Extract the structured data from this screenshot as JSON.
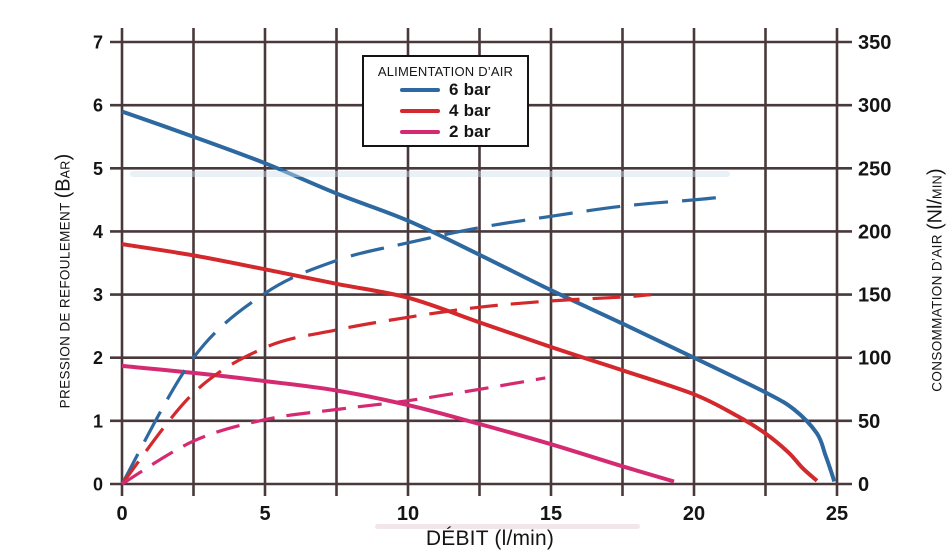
{
  "colors": {
    "grid": "#4a393b",
    "text": "#141414",
    "blue": "#2d69a0",
    "red": "#d3282c",
    "magenta": "#d42a72",
    "background": "#ffffff"
  },
  "legend": {
    "title": "ALIMENTATION D’AIR",
    "entries": [
      {
        "label": "6 bar",
        "color": "#2d69a0"
      },
      {
        "label": "4 bar",
        "color": "#d3282c"
      },
      {
        "label": "2 bar",
        "color": "#d42a72"
      }
    ]
  },
  "axes": {
    "left": {
      "title_main": "PRESSION DE REFOULEMENT ",
      "title_open": "(B",
      "title_small": "AR",
      "title_close": ")"
    },
    "right": {
      "title_main": "CONSOMMATION D’AIR ",
      "title_open": "(Nl/",
      "title_small": "MIN",
      "title_close": ")"
    },
    "x": {
      "title": "DÉBIT (l/min)"
    }
  },
  "chart_data": {
    "type": "line",
    "title": "",
    "xlabel": "DÉBIT (l/min)",
    "ylabel_left": "PRESSION DE REFOULEMENT (BAR)",
    "ylabel_right": "CONSOMMATION D’AIR (Nl/MIN)",
    "xlim": [
      0,
      25
    ],
    "ylim_left": [
      0,
      7
    ],
    "ylim_right": [
      0,
      350
    ],
    "x_tick_labels": [
      0,
      5,
      10,
      15,
      20,
      25
    ],
    "x_gridline_step": 2.5,
    "y_ticks_left": [
      0,
      1,
      2,
      3,
      4,
      5,
      6,
      7
    ],
    "y_ticks_right": [
      0,
      50,
      100,
      150,
      200,
      250,
      300,
      350
    ],
    "grid": true,
    "legend_title": "ALIMENTATION D’AIR",
    "legend_position": "top-center",
    "series": [
      {
        "id": "pression-6bar",
        "name": "6 bar – pression de refoulement",
        "axis": "left",
        "style": "solid",
        "color": "#2d69a0",
        "dash": null,
        "points": [
          [
            0,
            5.9
          ],
          [
            2.5,
            5.5
          ],
          [
            5,
            5.08
          ],
          [
            7.5,
            4.6
          ],
          [
            10,
            4.17
          ],
          [
            12.5,
            3.63
          ],
          [
            15,
            3.07
          ],
          [
            17.5,
            2.54
          ],
          [
            20,
            2.0
          ],
          [
            22.5,
            1.45
          ],
          [
            23.5,
            1.18
          ],
          [
            24.3,
            0.8
          ],
          [
            24.6,
            0.45
          ],
          [
            24.85,
            0.12
          ],
          [
            24.9,
            0.04
          ]
        ]
      },
      {
        "id": "pression-4bar",
        "name": "4 bar – pression de refoulement",
        "axis": "left",
        "style": "solid",
        "color": "#d3282c",
        "dash": null,
        "points": [
          [
            0,
            3.8
          ],
          [
            2.5,
            3.62
          ],
          [
            5,
            3.4
          ],
          [
            7.5,
            3.17
          ],
          [
            10,
            2.95
          ],
          [
            12.5,
            2.56
          ],
          [
            15,
            2.17
          ],
          [
            17.5,
            1.8
          ],
          [
            20,
            1.42
          ],
          [
            21.5,
            1.08
          ],
          [
            22.5,
            0.8
          ],
          [
            23.3,
            0.5
          ],
          [
            23.8,
            0.25
          ],
          [
            24.3,
            0.05
          ]
        ]
      },
      {
        "id": "pression-2bar",
        "name": "2 bar – pression de refoulement",
        "axis": "left",
        "style": "solid",
        "color": "#d42a72",
        "dash": null,
        "points": [
          [
            0,
            1.87
          ],
          [
            2.5,
            1.76
          ],
          [
            5,
            1.63
          ],
          [
            7.5,
            1.48
          ],
          [
            10,
            1.25
          ],
          [
            12.5,
            0.95
          ],
          [
            15,
            0.63
          ],
          [
            17.5,
            0.28
          ],
          [
            19.3,
            0.04
          ]
        ]
      },
      {
        "id": "consommation-6bar",
        "name": "6 bar – consommation d’air",
        "axis": "right",
        "style": "dashed",
        "color": "#2d69a0",
        "dash": [
          34,
          14
        ],
        "points": [
          [
            0,
            0
          ],
          [
            2.5,
            100
          ],
          [
            5,
            151
          ],
          [
            7.5,
            177
          ],
          [
            10,
            191
          ],
          [
            12.5,
            203
          ],
          [
            15,
            212
          ],
          [
            17.5,
            220
          ],
          [
            20,
            225
          ],
          [
            20.9,
            227
          ]
        ]
      },
      {
        "id": "consommation-4bar",
        "name": "4 bar – consommation d’air",
        "axis": "right",
        "style": "dashed",
        "color": "#d3282c",
        "dash": [
          28,
          13
        ],
        "points": [
          [
            0,
            0
          ],
          [
            2.5,
            72
          ],
          [
            5,
            108
          ],
          [
            7.5,
            122
          ],
          [
            10,
            132
          ],
          [
            12.5,
            140
          ],
          [
            15,
            145
          ],
          [
            17.5,
            148
          ],
          [
            18.5,
            150
          ]
        ]
      },
      {
        "id": "consommation-2bar",
        "name": "2 bar – consommation d’air",
        "axis": "right",
        "style": "dashed",
        "color": "#d42a72",
        "dash": [
          24,
          12
        ],
        "points": [
          [
            0,
            0
          ],
          [
            2.5,
            34
          ],
          [
            5,
            51
          ],
          [
            7.5,
            59
          ],
          [
            10,
            66
          ],
          [
            12.5,
            75
          ],
          [
            14.8,
            84
          ]
        ]
      }
    ]
  }
}
